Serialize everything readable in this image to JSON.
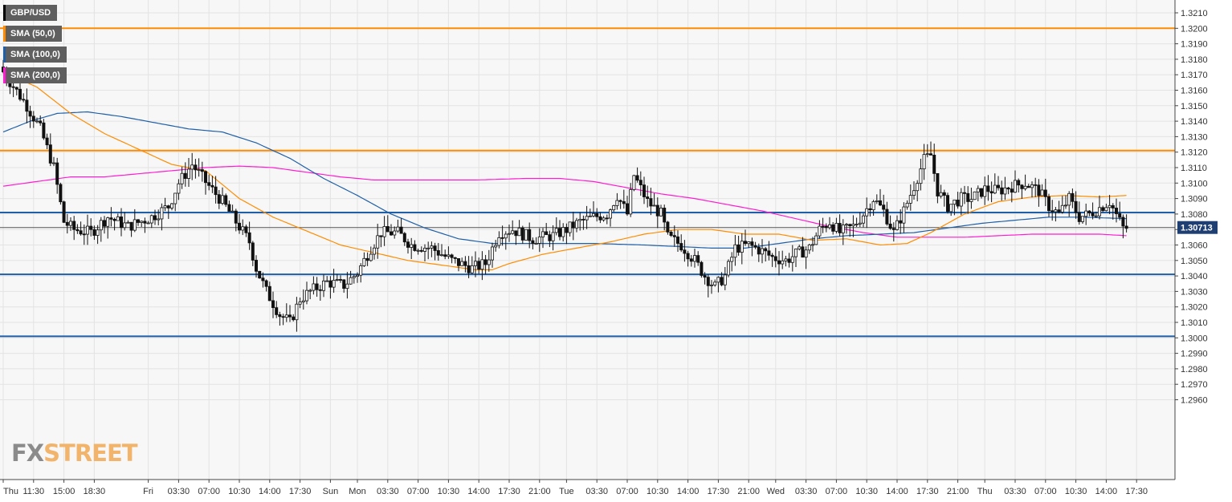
{
  "legend": [
    {
      "label": "GBP/USD",
      "color": "#000000"
    },
    {
      "label": "SMA (50,0)",
      "color": "#ff8c00"
    },
    {
      "label": "SMA (100,0)",
      "color": "#1f5fa8"
    },
    {
      "label": "SMA (200,0)",
      "color": "#ff1dd1"
    }
  ],
  "watermark": {
    "part1": "FX",
    "part2": "STREET"
  },
  "price_badge": "1.30713",
  "chart_data": {
    "type": "candlestick",
    "symbol": "GBP/USD",
    "ylim": [
      1.2955,
      1.3215
    ],
    "y_ticks": [
      "1.3210",
      "1.3200",
      "1.3190",
      "1.3180",
      "1.3170",
      "1.3160",
      "1.3150",
      "1.3140",
      "1.3130",
      "1.3120",
      "1.3110",
      "1.3100",
      "1.3090",
      "1.3080",
      "1.3070",
      "1.3060",
      "1.3050",
      "1.3040",
      "1.3030",
      "1.3020",
      "1.3010",
      "1.3000",
      "1.2990",
      "1.2980",
      "1.2970",
      "1.2960"
    ],
    "x_ticks": [
      {
        "label": "Thu",
        "i": 0
      },
      {
        "label": "11:30",
        "i": 9
      },
      {
        "label": "15:00",
        "i": 18
      },
      {
        "label": "18:30",
        "i": 27
      },
      {
        "label": "Fri",
        "i": 43
      },
      {
        "label": "03:30",
        "i": 52
      },
      {
        "label": "07:00",
        "i": 61
      },
      {
        "label": "10:30",
        "i": 70
      },
      {
        "label": "14:00",
        "i": 79
      },
      {
        "label": "17:30",
        "i": 88
      },
      {
        "label": "Sun",
        "i": 97
      },
      {
        "label": "Mon",
        "i": 105
      },
      {
        "label": "03:30",
        "i": 114
      },
      {
        "label": "07:00",
        "i": 123
      },
      {
        "label": "10:30",
        "i": 132
      },
      {
        "label": "14:00",
        "i": 141
      },
      {
        "label": "17:30",
        "i": 150
      },
      {
        "label": "21:00",
        "i": 159
      },
      {
        "label": "Tue",
        "i": 167
      },
      {
        "label": "03:30",
        "i": 176
      },
      {
        "label": "07:00",
        "i": 185
      },
      {
        "label": "10:30",
        "i": 194
      },
      {
        "label": "14:00",
        "i": 203
      },
      {
        "label": "17:30",
        "i": 212
      },
      {
        "label": "21:00",
        "i": 221
      },
      {
        "label": "Wed",
        "i": 229
      },
      {
        "label": "03:30",
        "i": 238
      },
      {
        "label": "07:00",
        "i": 247
      },
      {
        "label": "10:30",
        "i": 256
      },
      {
        "label": "14:00",
        "i": 265
      },
      {
        "label": "17:30",
        "i": 274
      },
      {
        "label": "21:00",
        "i": 283
      },
      {
        "label": "Thu",
        "i": 291
      },
      {
        "label": "03:30",
        "i": 300
      },
      {
        "label": "07:00",
        "i": 309
      },
      {
        "label": "10:30",
        "i": 318
      },
      {
        "label": "14:00",
        "i": 327
      },
      {
        "label": "17:30",
        "i": 336
      }
    ],
    "horizontal_levels": [
      {
        "value": 1.32,
        "color": "#ff8c00"
      },
      {
        "value": 1.3121,
        "color": "#ff8c00"
      },
      {
        "value": 1.3081,
        "color": "#1f5fa8"
      },
      {
        "value": 1.3041,
        "color": "#1f5fa8"
      },
      {
        "value": 1.3001,
        "color": "#1f5fa8"
      }
    ],
    "current_price": 1.30713,
    "candle_count": 334,
    "price_path": [
      [
        0,
        1.3175
      ],
      [
        8,
        1.315
      ],
      [
        12,
        1.3135
      ],
      [
        16,
        1.311
      ],
      [
        19,
        1.3075
      ],
      [
        22,
        1.307
      ],
      [
        27,
        1.3068
      ],
      [
        32,
        1.3078
      ],
      [
        38,
        1.3072
      ],
      [
        45,
        1.3078
      ],
      [
        50,
        1.3085
      ],
      [
        53,
        1.31
      ],
      [
        57,
        1.3112
      ],
      [
        62,
        1.3098
      ],
      [
        66,
        1.3088
      ],
      [
        70,
        1.3075
      ],
      [
        74,
        1.3062
      ],
      [
        76,
        1.3045
      ],
      [
        79,
        1.303
      ],
      [
        83,
        1.3015
      ],
      [
        86,
        1.301
      ],
      [
        89,
        1.3025
      ],
      [
        92,
        1.303
      ],
      [
        97,
        1.3036
      ],
      [
        102,
        1.3034
      ],
      [
        106,
        1.3042
      ],
      [
        110,
        1.3058
      ],
      [
        113,
        1.3068
      ],
      [
        118,
        1.3068
      ],
      [
        122,
        1.306
      ],
      [
        128,
        1.3058
      ],
      [
        134,
        1.305
      ],
      [
        140,
        1.3045
      ],
      [
        144,
        1.3048
      ],
      [
        148,
        1.3068
      ],
      [
        152,
        1.307
      ],
      [
        158,
        1.3064
      ],
      [
        164,
        1.3066
      ],
      [
        168,
        1.307
      ],
      [
        172,
        1.3075
      ],
      [
        176,
        1.3078
      ],
      [
        180,
        1.308
      ],
      [
        183,
        1.3092
      ],
      [
        186,
        1.308
      ],
      [
        188,
        1.3105
      ],
      [
        192,
        1.3088
      ],
      [
        196,
        1.308
      ],
      [
        198,
        1.3065
      ],
      [
        202,
        1.306
      ],
      [
        206,
        1.305
      ],
      [
        209,
        1.304
      ],
      [
        212,
        1.3033
      ],
      [
        215,
        1.304
      ],
      [
        218,
        1.3058
      ],
      [
        222,
        1.306
      ],
      [
        226,
        1.3056
      ],
      [
        229,
        1.3052
      ],
      [
        233,
        1.305
      ],
      [
        236,
        1.3054
      ],
      [
        240,
        1.3058
      ],
      [
        243,
        1.307
      ],
      [
        246,
        1.3075
      ],
      [
        249,
        1.3068
      ],
      [
        253,
        1.3072
      ],
      [
        256,
        1.308
      ],
      [
        259,
        1.309
      ],
      [
        262,
        1.3082
      ],
      [
        265,
        1.3068
      ],
      [
        268,
        1.3082
      ],
      [
        271,
        1.3098
      ],
      [
        274,
        1.3115
      ],
      [
        276,
        1.3118
      ],
      [
        278,
        1.3095
      ],
      [
        281,
        1.3085
      ],
      [
        285,
        1.309
      ],
      [
        288,
        1.309
      ],
      [
        292,
        1.3096
      ],
      [
        296,
        1.3095
      ],
      [
        300,
        1.3098
      ],
      [
        304,
        1.31
      ],
      [
        308,
        1.3095
      ],
      [
        311,
        1.3085
      ],
      [
        314,
        1.308
      ],
      [
        317,
        1.309
      ],
      [
        320,
        1.3078
      ],
      [
        323,
        1.308
      ],
      [
        326,
        1.3084
      ],
      [
        329,
        1.3088
      ],
      [
        333,
        1.3071
      ]
    ],
    "sma_50": [
      [
        0,
        1.3172
      ],
      [
        10,
        1.3162
      ],
      [
        20,
        1.3145
      ],
      [
        30,
        1.3132
      ],
      [
        40,
        1.3122
      ],
      [
        50,
        1.3112
      ],
      [
        60,
        1.3108
      ],
      [
        70,
        1.309
      ],
      [
        80,
        1.3078
      ],
      [
        90,
        1.3069
      ],
      [
        100,
        1.306
      ],
      [
        110,
        1.3055
      ],
      [
        120,
        1.305
      ],
      [
        130,
        1.3047
      ],
      [
        140,
        1.3044
      ],
      [
        145,
        1.3044
      ],
      [
        150,
        1.3048
      ],
      [
        160,
        1.3054
      ],
      [
        170,
        1.3058
      ],
      [
        180,
        1.3062
      ],
      [
        190,
        1.3067
      ],
      [
        200,
        1.307
      ],
      [
        210,
        1.307
      ],
      [
        220,
        1.3067
      ],
      [
        230,
        1.3067
      ],
      [
        240,
        1.3063
      ],
      [
        250,
        1.3064
      ],
      [
        260,
        1.306
      ],
      [
        268,
        1.3061
      ],
      [
        275,
        1.3068
      ],
      [
        285,
        1.308
      ],
      [
        295,
        1.3088
      ],
      [
        305,
        1.3091
      ],
      [
        315,
        1.3092
      ],
      [
        325,
        1.3091
      ],
      [
        333,
        1.3092
      ]
    ],
    "sma_100": [
      [
        0,
        1.3133
      ],
      [
        8,
        1.314
      ],
      [
        16,
        1.3145
      ],
      [
        25,
        1.3146
      ],
      [
        35,
        1.3143
      ],
      [
        45,
        1.3139
      ],
      [
        55,
        1.3135
      ],
      [
        65,
        1.3133
      ],
      [
        75,
        1.3126
      ],
      [
        85,
        1.3116
      ],
      [
        95,
        1.3103
      ],
      [
        105,
        1.3092
      ],
      [
        115,
        1.308
      ],
      [
        125,
        1.3071
      ],
      [
        135,
        1.3064
      ],
      [
        145,
        1.3061
      ],
      [
        160,
        1.3061
      ],
      [
        175,
        1.3061
      ],
      [
        190,
        1.306
      ],
      [
        200,
        1.3059
      ],
      [
        210,
        1.3058
      ],
      [
        220,
        1.3058
      ],
      [
        230,
        1.3061
      ],
      [
        240,
        1.3064
      ],
      [
        250,
        1.3066
      ],
      [
        260,
        1.3067
      ],
      [
        270,
        1.3068
      ],
      [
        280,
        1.3071
      ],
      [
        290,
        1.3074
      ],
      [
        300,
        1.3076
      ],
      [
        310,
        1.3078
      ],
      [
        320,
        1.3078
      ],
      [
        333,
        1.3077
      ]
    ],
    "sma_200": [
      [
        0,
        1.3098
      ],
      [
        10,
        1.3101
      ],
      [
        20,
        1.3104
      ],
      [
        30,
        1.3104
      ],
      [
        40,
        1.3106
      ],
      [
        50,
        1.3108
      ],
      [
        60,
        1.311
      ],
      [
        70,
        1.3111
      ],
      [
        80,
        1.311
      ],
      [
        90,
        1.3107
      ],
      [
        100,
        1.3104
      ],
      [
        110,
        1.3102
      ],
      [
        125,
        1.3102
      ],
      [
        140,
        1.3102
      ],
      [
        155,
        1.3103
      ],
      [
        165,
        1.3103
      ],
      [
        175,
        1.3101
      ],
      [
        185,
        1.3097
      ],
      [
        195,
        1.3093
      ],
      [
        205,
        1.309
      ],
      [
        215,
        1.3086
      ],
      [
        225,
        1.3082
      ],
      [
        235,
        1.3077
      ],
      [
        245,
        1.3072
      ],
      [
        255,
        1.3068
      ],
      [
        265,
        1.3065
      ],
      [
        275,
        1.3065
      ],
      [
        285,
        1.3065
      ],
      [
        295,
        1.3066
      ],
      [
        305,
        1.3067
      ],
      [
        315,
        1.3067
      ],
      [
        325,
        1.3067
      ],
      [
        333,
        1.3066
      ]
    ]
  }
}
